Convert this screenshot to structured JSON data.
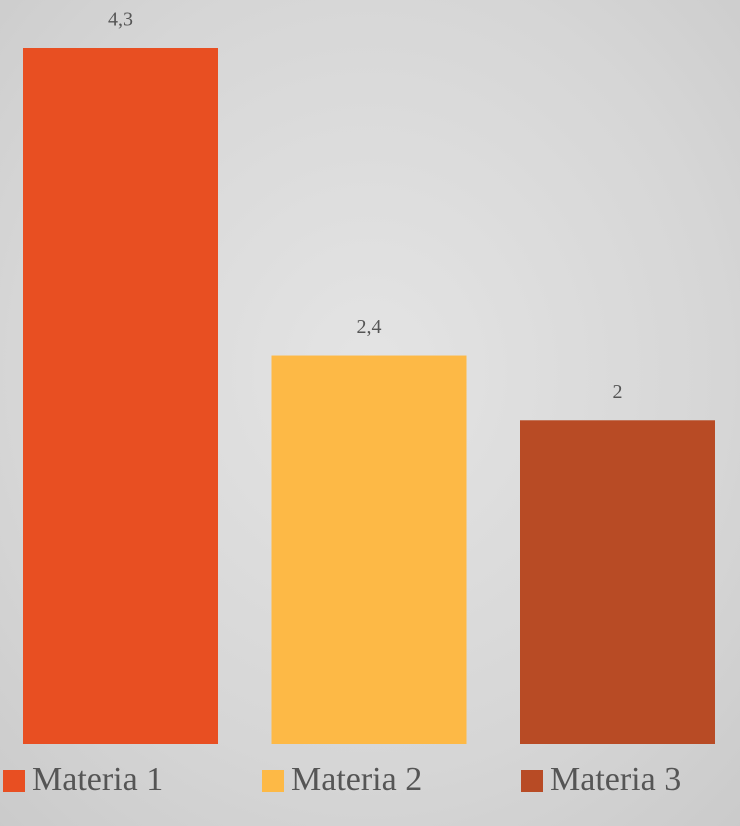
{
  "chart_data": {
    "type": "bar",
    "series": [
      {
        "name": "Materia 1",
        "color": "#e84f22",
        "values": [
          4.3
        ],
        "value_labels": [
          "4,3"
        ]
      },
      {
        "name": "Materia 2",
        "color": "#fdb946",
        "values": [
          2.4
        ],
        "value_labels": [
          "2,4"
        ]
      },
      {
        "name": "Materia 3",
        "color": "#b84b25",
        "values": [
          2
        ]
      }
    ]
  }
}
